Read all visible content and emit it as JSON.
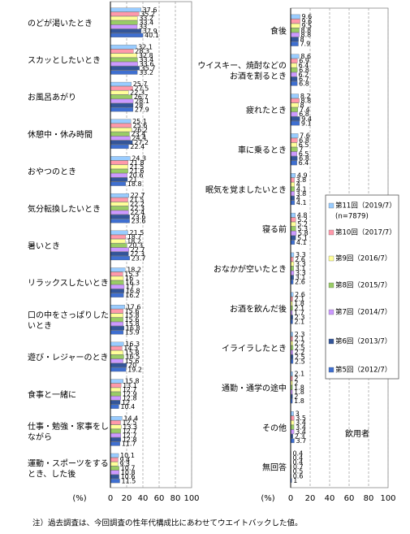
{
  "chart_data": [
    {
      "type": "bar",
      "orientation": "horizontal",
      "unit": "(%)",
      "xlim": [
        0,
        100
      ],
      "xticks": [
        0,
        20,
        40,
        60,
        80,
        100
      ],
      "grid": true,
      "categories": [
        "のどが渇いたとき",
        "スカッとしたいとき",
        "お風呂あがり",
        "休憩中・休み時間",
        "おやつのとき",
        "気分転換したいとき",
        "暑いとき",
        "リラックスしたいとき",
        "口の中をさっぱりした\nいとき",
        "遊び・レジャーのとき",
        "食事と一緒に",
        "仕事・勉強・家事をし\nながら",
        "運動・スポーツをする\nとき、した後"
      ],
      "series": [
        {
          "color": "#99ccff",
          "values": [
            37.6,
            32.1,
            25.7,
            25.1,
            24.3,
            22.7,
            21.5,
            18.2,
            17.6,
            16.3,
            15.8,
            14.4,
            10.1
          ]
        },
        {
          "color": "#ff99aa",
          "values": [
            35.2,
            28.3,
            27.5,
            25.6,
            21.8,
            21.5,
            18.7,
            15.3,
            15.6,
            14.3,
            13.1,
            12.5,
            9.4
          ]
        },
        {
          "color": "#ffff99",
          "values": [
            33.2,
            32.8,
            22.3,
            26.2,
            21.5,
            22.2,
            18.2,
            16.0,
            15.8,
            15.8,
            12.7,
            13.3,
            9.3
          ]
        },
        {
          "color": "#99cc66",
          "values": [
            33.4,
            33.4,
            26.7,
            23.4,
            21.6,
            22.3,
            20.3,
            16.3,
            15.6,
            16.5,
            12.9,
            12.7,
            10.7
          ]
        },
        {
          "color": "#cc99ff",
          "values": [
            33.0,
            33.6,
            28.1,
            24.4,
            20.6,
            22.4,
            22.7,
            17.0,
            15.8,
            15.6,
            12.8,
            12.7,
            10.8
          ]
        },
        {
          "color": "#335599",
          "values": [
            37.9,
            35.7,
            28.0,
            27.2,
            21.0,
            23.6,
            22.3,
            16.8,
            16.8,
            20.0,
            12.0,
            12.8,
            10.6
          ]
        },
        {
          "color": "#3f6fd0",
          "values": [
            40.1,
            33.2,
            27.9,
            22.4,
            18.8,
            23.6,
            23.7,
            16.2,
            15.9,
            19.2,
            10.4,
            11.7,
            11.5
          ]
        }
      ]
    },
    {
      "type": "bar",
      "orientation": "horizontal",
      "unit": "(%)",
      "xlim": [
        0,
        100
      ],
      "xticks": [
        0,
        20,
        40,
        60,
        80,
        100
      ],
      "grid": true,
      "legend_note": "(n=7879)",
      "annotation": "飲用者",
      "categories": [
        "食後",
        "ウイスキー、焼酎などの\nお酒を割るとき",
        "疲れたとき",
        "車に乗るとき",
        "眠気を覚ましたいとき",
        "寝る前",
        "おなかが空いたとき",
        "お酒を飲んだ後",
        "イライラしたとき",
        "通勤・通学の途中",
        "その他",
        "無回答"
      ],
      "series": [
        {
          "name": "第11回（2019/7）",
          "color": "#99ccff",
          "values": [
            9.6,
            8.6,
            8.2,
            7.6,
            4.9,
            4.8,
            3.3,
            2.6,
            2.3,
            2.1,
            3.0,
            0.4
          ]
        },
        {
          "name": "第10回（2017/7）",
          "color": "#ff99aa",
          "values": [
            9.6,
            6.9,
            8.8,
            6.8,
            3.8,
            5.2,
            2.6,
            2.1,
            2.1,
            2.0,
            3.5,
            0.4
          ]
        },
        {
          "name": "第9回（2016/7）",
          "color": "#ffff99",
          "values": [
            9.5,
            6.4,
            8.0,
            6.5,
            4.0,
            5.2,
            3.3,
            1.8,
            2.2,
            2.0,
            3.4,
            0.4
          ]
        },
        {
          "name": "第8回（2015/7）",
          "color": "#99cc66",
          "values": [
            8.8,
            6.8,
            7.4,
            7.0,
            4.1,
            5.3,
            3.1,
            2.1,
            2.5,
            1.8,
            3.4,
            0.7
          ]
        },
        {
          "name": "第7回（2014/7）",
          "color": "#cc99ff",
          "values": [
            8.8,
            6.2,
            6.8,
            6.5,
            3.8,
            5.8,
            3.3,
            1.7,
            2.2,
            1.8,
            3.4,
            0.5
          ]
        },
        {
          "name": "第6回（2013/7）",
          "color": "#335599",
          "values": [
            8.0,
            6.7,
            9.4,
            6.8,
            4.0,
            5.1,
            3.1,
            2.3,
            2.5,
            2.0,
            2.3,
            0.6
          ]
        },
        {
          "name": "第5回（2012/7）",
          "color": "#3f6fd0",
          "values": [
            7.9,
            6.8,
            9.1,
            6.4,
            4.1,
            4.1,
            2.6,
            2.1,
            2.5,
            1.8,
            3.7,
            1.0
          ]
        }
      ]
    }
  ],
  "footnote": "注）過去調査は、今回調査の性年代構成比にあわせてウエイトバックした値。"
}
